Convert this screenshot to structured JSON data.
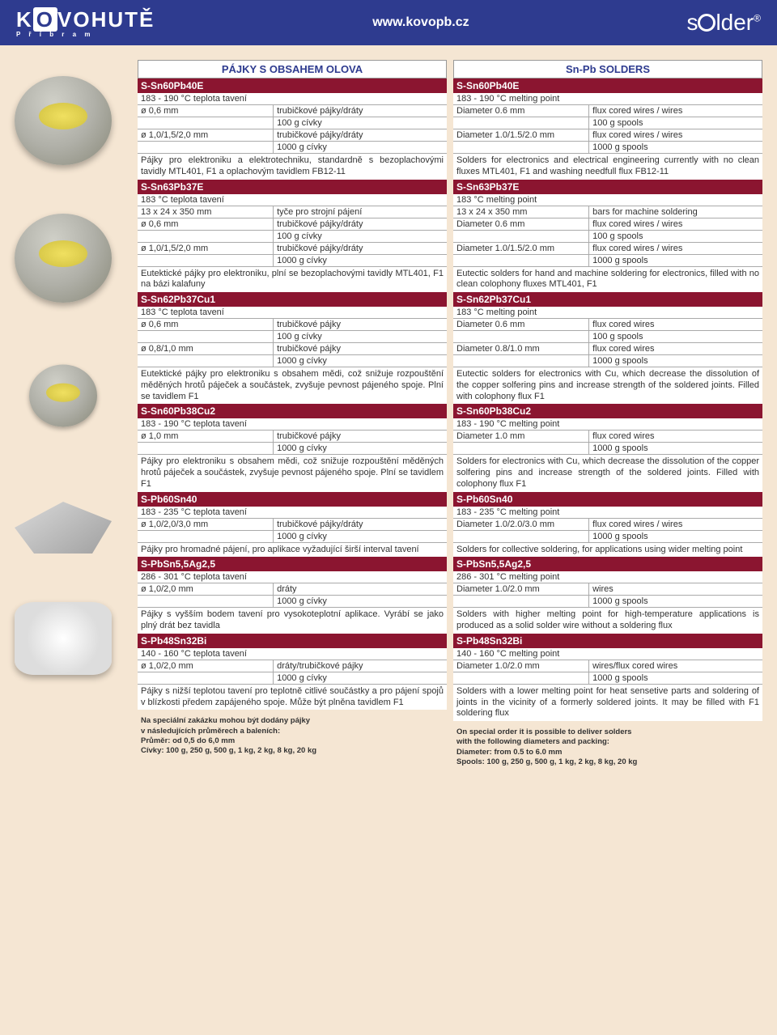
{
  "header": {
    "logo_left_pre": "K",
    "logo_left_box": "O",
    "logo_left_post": "VOHUTĚ",
    "logo_left_sub": "P ř í b r a m",
    "url": "www.kovopb.cz",
    "logo_right_s": "s",
    "logo_right_lder": "lder",
    "logo_right_reg": "®"
  },
  "cz": {
    "title": "PÁJKY S OBSAHEM OLOVA",
    "sections": [
      {
        "hdr": "S-Sn60Pb40E",
        "temp": "183 - 190 °C teplota tavení",
        "rows": [
          [
            "ø 0,6 mm",
            "trubičkové pájky/dráty"
          ],
          [
            "",
            "100 g cívky"
          ],
          [
            "ø 1,0/1,5/2,0 mm",
            "trubičkové pájky/dráty"
          ],
          [
            "",
            "1000 g cívky"
          ]
        ],
        "desc": "Pájky pro elektroniku a elektrotechniku, standardně s bezoplachovými tavidly MTL401, F1 a oplachovým tavidlem FB12-11"
      },
      {
        "hdr": "S-Sn63Pb37E",
        "temp": "183 °C teplota tavení",
        "rows": [
          [
            "13 x 24 x 350 mm",
            "tyče pro strojní pájení"
          ],
          [
            "ø 0,6 mm",
            "trubičkové pájky/dráty"
          ],
          [
            "",
            "100 g cívky"
          ],
          [
            "ø 1,0/1,5/2,0 mm",
            "trubičkové pájky/dráty"
          ],
          [
            "",
            "1000 g cívky"
          ]
        ],
        "desc": "Eutektické pájky pro elektroniku, plní se bez­oplachovými tavidly MTL401, F1 na bázi kalafuny"
      },
      {
        "hdr": "S-Sn62Pb37Cu1",
        "temp": "183 °C teplota tavení",
        "rows": [
          [
            "ø 0,6 mm",
            "trubičkové pájky"
          ],
          [
            "",
            "100 g cívky"
          ],
          [
            "ø 0,8/1,0 mm",
            "trubičkové pájky"
          ],
          [
            "",
            "1000 g cívky"
          ]
        ],
        "desc": "Eutektické pájky pro elektroniku s obsahem mědi, což snižuje rozpouštění měděných hrotů páječek a součástek, zvyšuje pevnost pájeného spoje. Plní se tavidlem F1"
      },
      {
        "hdr": "S-Sn60Pb38Cu2",
        "temp": "183 - 190 °C teplota tavení",
        "rows": [
          [
            "ø 1,0 mm",
            "trubičkové pájky"
          ],
          [
            "",
            "1000 g cívky"
          ]
        ],
        "desc": "Pájky pro elektroniku s obsahem mědi, což snižuje rozpouštění měděných hrotů páječek a součástek, zvyšuje pevnost pájeného spoje. Plní se tavidlem F1"
      },
      {
        "hdr": "S-Pb60Sn40",
        "temp": "183 - 235 °C teplota tavení",
        "rows": [
          [
            "ø 1,0/2,0/3,0 mm",
            "trubičkové pájky/dráty"
          ],
          [
            "",
            "1000 g cívky"
          ]
        ],
        "desc": "Pájky pro hromadné pájení, pro aplikace vyžadující širší interval tavení"
      },
      {
        "hdr": "S-PbSn5,5Ag2,5",
        "temp": "286 - 301 °C teplota tavení",
        "rows": [
          [
            "ø 1,0/2,0 mm",
            "dráty"
          ],
          [
            "",
            "1000 g cívky"
          ]
        ],
        "desc": "Pájky s vyšším bodem tavení pro vysokoteplotní aplikace. Vyrábí se jako plný drát bez tavidla"
      },
      {
        "hdr": "S-Pb48Sn32Bi",
        "temp": "140 - 160 °C teplota tavení",
        "rows": [
          [
            "ø 1,0/2,0 mm",
            "dráty/trubičkové pájky"
          ],
          [
            "",
            "1000 g cívky"
          ]
        ],
        "desc": "Pájky s nižší teplotou tavení pro teplotně citlivé součástky a pro pájení spojů v blízkosti předem zapájeného spoje. Může být plněna tavidlem F1"
      }
    ],
    "footer": "Na speciální zakázku mohou být dodány pájky\nv následujících průměrech a baleních:\nPrůměr: od 0,5 do 6,0 mm\nCívky: 100 g, 250 g, 500 g, 1 kg, 2 kg, 8 kg, 20 kg"
  },
  "en": {
    "title": "Sn-Pb SOLDERS",
    "sections": [
      {
        "hdr": "S-Sn60Pb40E",
        "temp": "183 - 190 °C melting point",
        "rows": [
          [
            "Diameter 0.6 mm",
            "flux cored wires / wires"
          ],
          [
            "",
            "100 g spools"
          ],
          [
            "Diameter 1.0/1.5/2.0 mm",
            "flux cored wires / wires"
          ],
          [
            "",
            "1000 g spools"
          ]
        ],
        "desc": "Solders for electronics and electrical engineering currently with no clean fluxes MTL401, F1 and washing needfull flux FB12-11"
      },
      {
        "hdr": "S-Sn63Pb37E",
        "temp": "183 °C melting point",
        "rows": [
          [
            "13 x 24 x 350 mm",
            "bars for machine soldering"
          ],
          [
            "Diameter 0.6 mm",
            "flux cored wires / wires"
          ],
          [
            "",
            "100 g spools"
          ],
          [
            "Diameter 1.0/1.5/2.0 mm",
            "flux cored wires / wires"
          ],
          [
            "",
            "1000 g spools"
          ]
        ],
        "desc": "Eutectic solders for hand and machine soldering for electronics, filled with no clean colophony fluxes MTL401, F1"
      },
      {
        "hdr": "S-Sn62Pb37Cu1",
        "temp": "183 °C melting point",
        "rows": [
          [
            "Diameter 0.6 mm",
            "flux cored wires"
          ],
          [
            "",
            "100 g spools"
          ],
          [
            "Diameter 0.8/1.0 mm",
            "flux cored wires"
          ],
          [
            "",
            "1000 g spools"
          ]
        ],
        "desc": "Eutectic solders for electronics with Cu, which decrease the dissolution of the copper solfering pins and increase strength of the soldered joints. Filled with colophony flux F1"
      },
      {
        "hdr": "S-Sn60Pb38Cu2",
        "temp": "183 - 190 °C melting point",
        "rows": [
          [
            "Diameter 1.0 mm",
            "flux cored wires"
          ],
          [
            "",
            "1000 g spools"
          ]
        ],
        "desc": "Solders for electronics with Cu, which decrease the dissolution of the copper solfering pins and increase strength of the soldered joints. Filled with colophony flux F1"
      },
      {
        "hdr": "S-Pb60Sn40",
        "temp": "183 - 235 °C melting point",
        "rows": [
          [
            "Diameter 1.0/2.0/3.0 mm",
            "flux cored wires / wires"
          ],
          [
            "",
            "1000 g spools"
          ]
        ],
        "desc": "Solders for collective soldering, for applications using wider melting point"
      },
      {
        "hdr": "S-PbSn5,5Ag2,5",
        "temp": "286 - 301 °C melting point",
        "rows": [
          [
            "Diameter 1.0/2.0 mm",
            "wires"
          ],
          [
            "",
            "1000 g spools"
          ]
        ],
        "desc": "Solders with higher melting point for high-temperature applications is produced as a solid solder wire without a soldering flux"
      },
      {
        "hdr": "S-Pb48Sn32Bi",
        "temp": "140 - 160 °C melting point",
        "rows": [
          [
            "Diameter 1.0/2.0 mm",
            "wires/flux cored wires"
          ],
          [
            "",
            "1000 g spools"
          ]
        ],
        "desc": "Solders with a lower melting point for heat sensetive parts and soldering of joints in the vicinity of a formerly soldered joints. It may be filled with F1 soldering flux"
      }
    ],
    "footer": "On special order it is possible to deliver solders\nwith the following diameters and packing:\nDiameter: from 0.5 to 6.0 mm\nSpools: 100 g, 250 g, 500 g, 1 kg, 2 kg, 8 kg, 20 kg"
  }
}
